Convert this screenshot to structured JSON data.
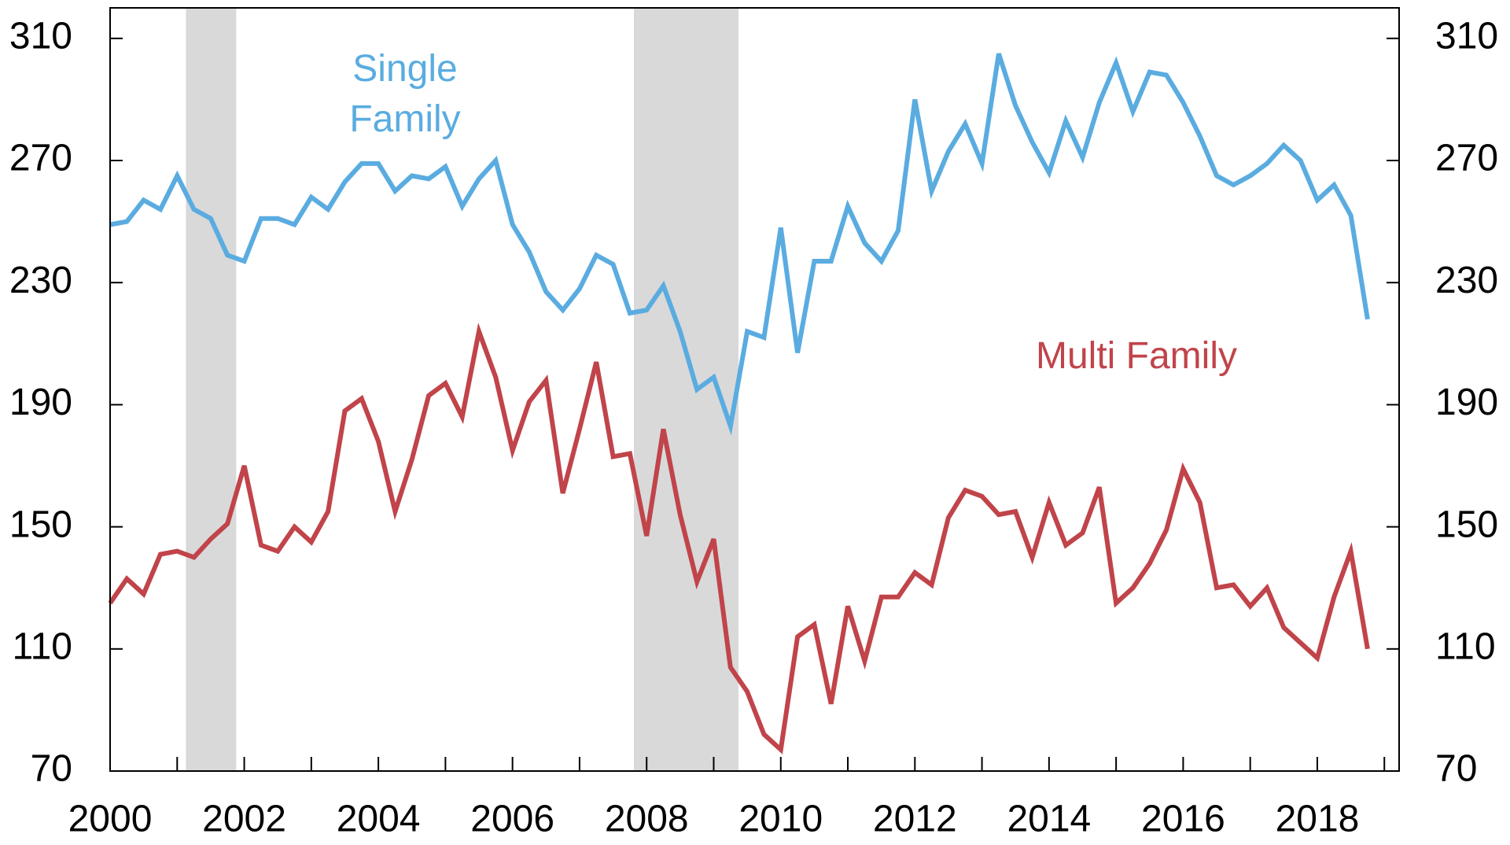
{
  "chart_data": {
    "type": "line",
    "x": [
      2000,
      2000.25,
      2000.5,
      2000.75,
      2001,
      2001.25,
      2001.5,
      2001.75,
      2002,
      2002.25,
      2002.5,
      2002.75,
      2003,
      2003.25,
      2003.5,
      2003.75,
      2004,
      2004.25,
      2004.5,
      2004.75,
      2005,
      2005.25,
      2005.5,
      2005.75,
      2006,
      2006.25,
      2006.5,
      2006.75,
      2007,
      2007.25,
      2007.5,
      2007.75,
      2008,
      2008.25,
      2008.5,
      2008.75,
      2009,
      2009.25,
      2009.5,
      2009.75,
      2010,
      2010.25,
      2010.5,
      2010.75,
      2011,
      2011.25,
      2011.5,
      2011.75,
      2012,
      2012.25,
      2012.5,
      2012.75,
      2013,
      2013.25,
      2013.5,
      2013.75,
      2014,
      2014.25,
      2014.5,
      2014.75,
      2015,
      2015.25,
      2015.5,
      2015.75,
      2016,
      2016.25,
      2016.5,
      2016.75,
      2017,
      2017.25,
      2017.5,
      2017.75,
      2018,
      2018.25,
      2018.5,
      2018.75
    ],
    "series": [
      {
        "name": "Single Family",
        "color": "#5aace0",
        "values": [
          249,
          250,
          257,
          254,
          265,
          254,
          251,
          239,
          237,
          251,
          251,
          249,
          258,
          254,
          263,
          269,
          269,
          260,
          265,
          264,
          268,
          255,
          264,
          270,
          249,
          240,
          227,
          221,
          228,
          239,
          236,
          220,
          221,
          229,
          214,
          195,
          199,
          183,
          214,
          212,
          248,
          207,
          237,
          237,
          255,
          243,
          237,
          247,
          290,
          260,
          273,
          282,
          269,
          305,
          288,
          276,
          266,
          283,
          271,
          289,
          302,
          286,
          299,
          298,
          289,
          278,
          265,
          262,
          265,
          269,
          275,
          270,
          257,
          262,
          252,
          218
        ]
      },
      {
        "name": "Multi Family",
        "color": "#c0444a",
        "values": [
          125,
          133,
          128,
          141,
          142,
          140,
          146,
          151,
          170,
          144,
          142,
          150,
          145,
          155,
          188,
          192,
          178,
          155,
          172,
          193,
          197,
          186,
          214,
          199,
          175,
          191,
          198,
          161,
          182,
          204,
          173,
          174,
          147,
          182,
          154,
          132,
          146,
          104,
          96,
          82,
          77,
          114,
          118,
          92,
          124,
          106,
          127,
          127,
          135,
          131,
          153,
          162,
          160,
          154,
          155,
          140,
          158,
          144,
          148,
          163,
          125,
          130,
          138,
          149,
          169,
          158,
          130,
          131,
          124,
          130,
          117,
          112,
          107,
          127,
          142,
          110
        ]
      }
    ],
    "annotations": [
      {
        "text": "Single Family",
        "series": 0
      },
      {
        "text": "Multi Family",
        "series": 1
      }
    ],
    "xlim": [
      2000,
      2019.22
    ],
    "xticks": [
      2000,
      2002,
      2004,
      2006,
      2008,
      2010,
      2012,
      2014,
      2016,
      2018
    ],
    "ylim": [
      70,
      320
    ],
    "yticks": [
      70,
      110,
      150,
      190,
      230,
      270,
      310
    ],
    "y2lim": [
      70,
      320
    ],
    "y2ticks": [
      70,
      110,
      150,
      190,
      230,
      270,
      310
    ],
    "shaded_regions": [
      [
        2001.13,
        2001.88
      ],
      [
        2007.81,
        2009.37
      ]
    ],
    "shade_color": "#d9d9d9"
  }
}
